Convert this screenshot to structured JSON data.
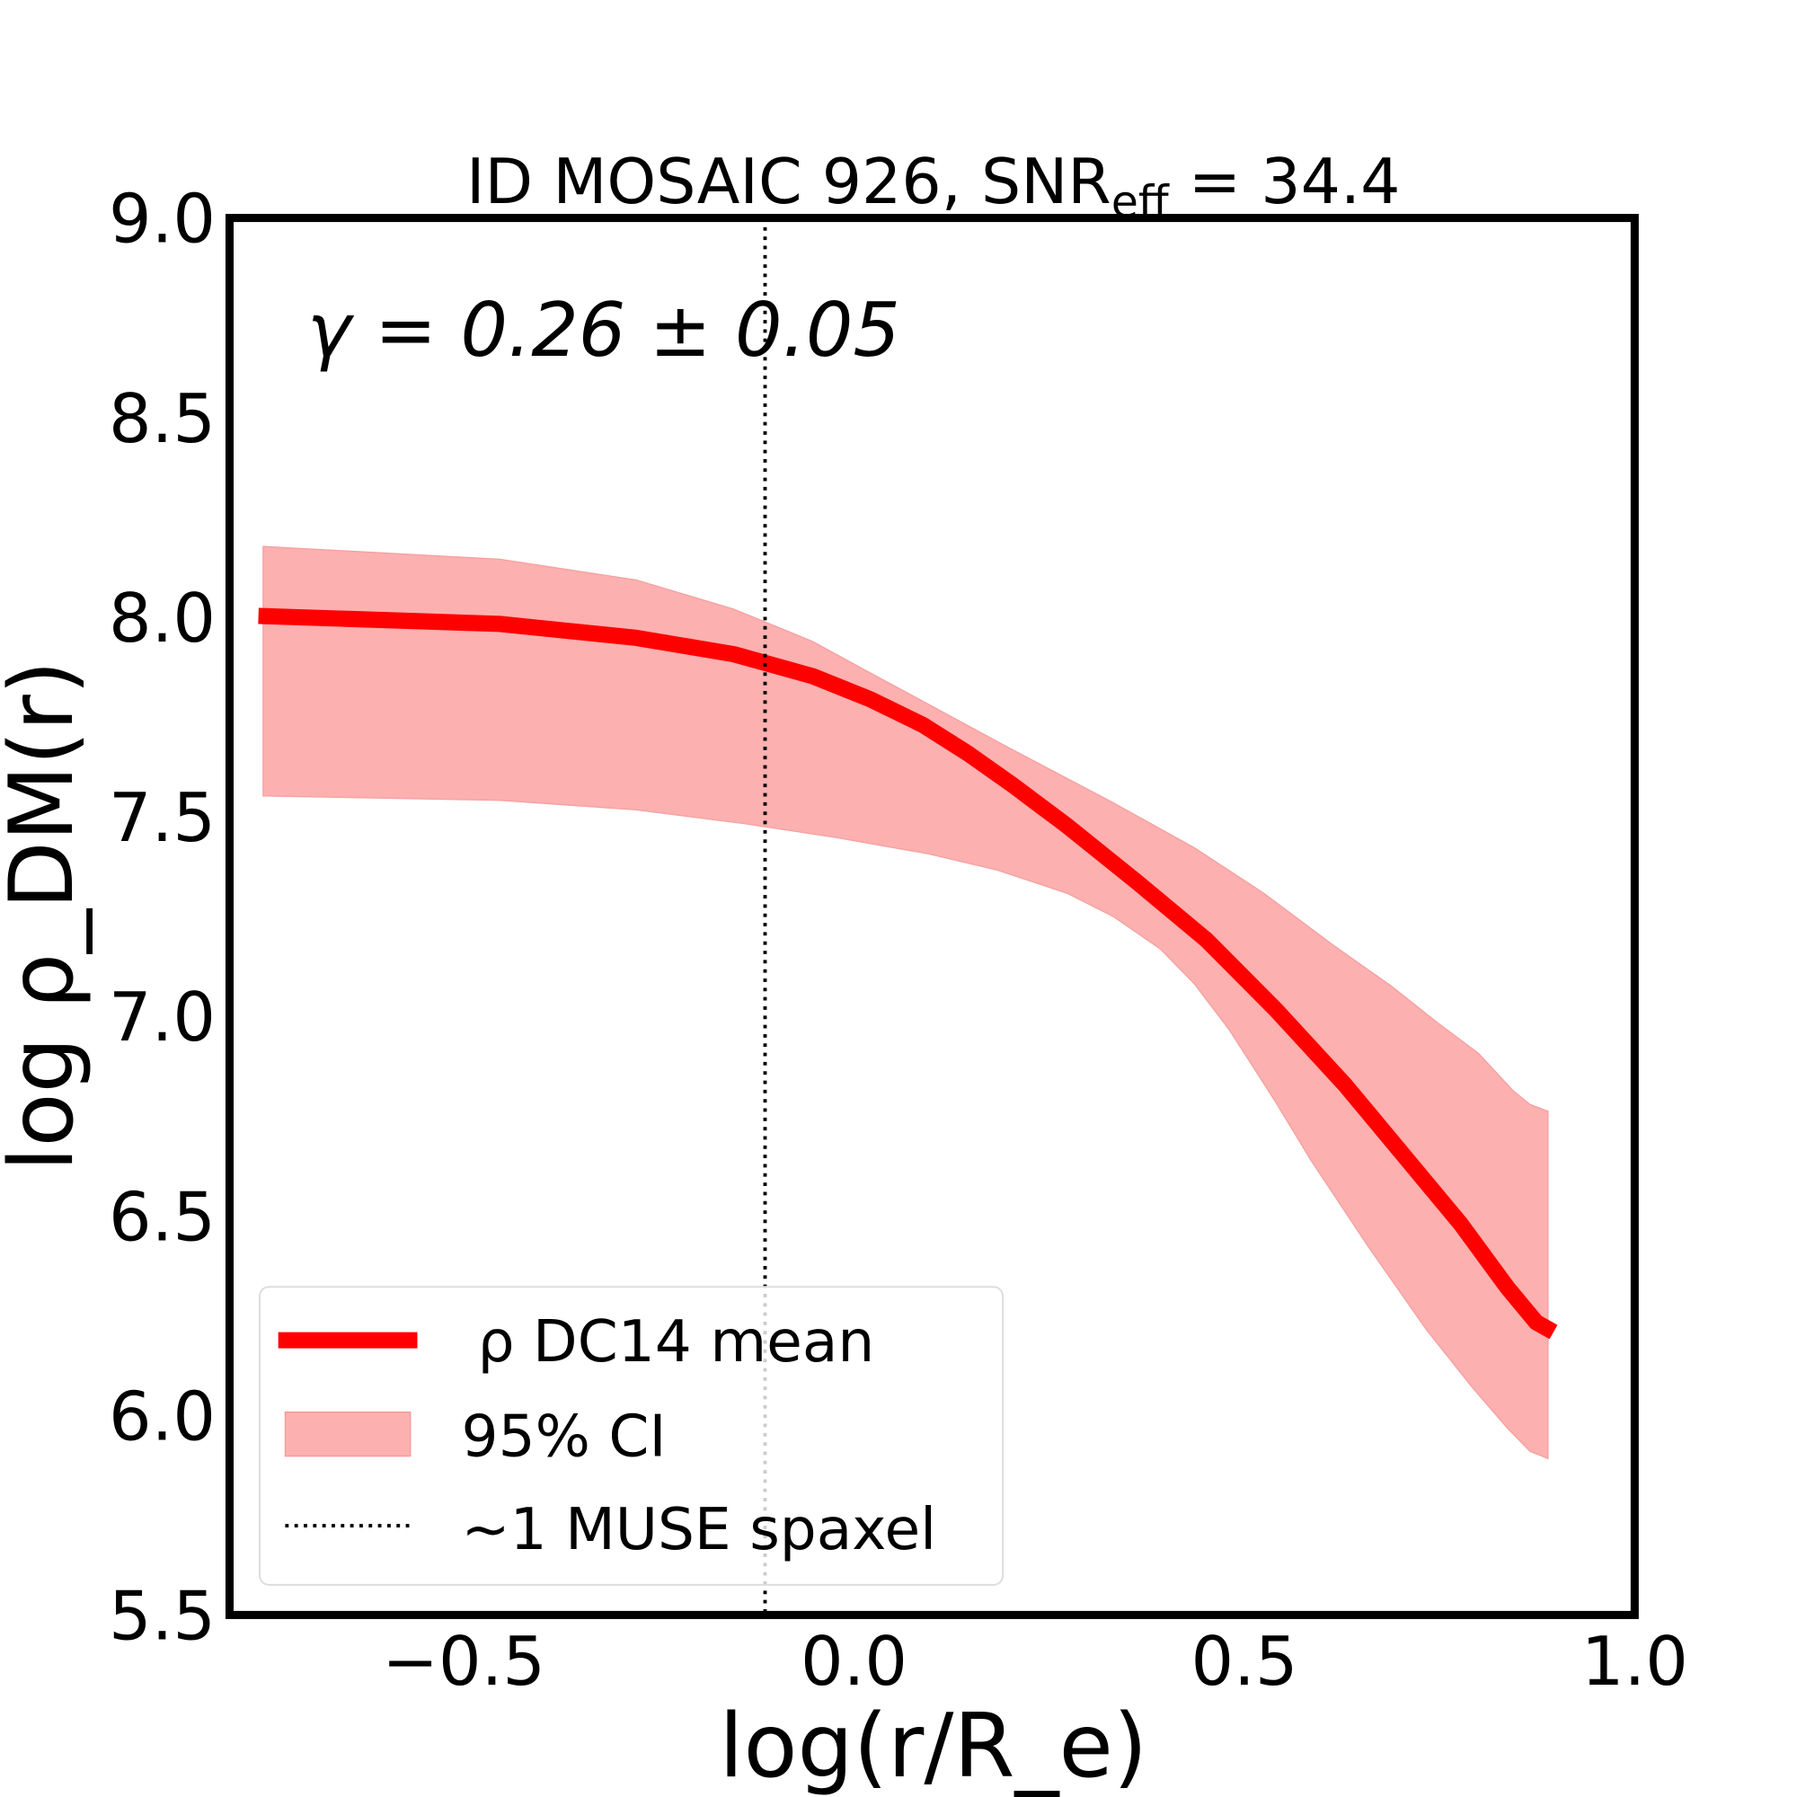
{
  "chart_data": {
    "type": "line",
    "title": "ID MOSAIC 926, SNR",
    "title_sub": "eff",
    "title_tail": " = 34.4",
    "xlabel": "log(r/R_e)",
    "ylabel": "log ρ_DM(r)",
    "xlim": [
      -0.8,
      1.0
    ],
    "ylim": [
      5.5,
      9.0
    ],
    "xticks": [
      "−0.5",
      "0.0",
      "0.5",
      "1.0"
    ],
    "xtick_values": [
      -0.5,
      0.0,
      0.5,
      1.0
    ],
    "yticks": [
      "5.5",
      "6.0",
      "6.5",
      "7.0",
      "7.5",
      "8.0",
      "8.5",
      "9.0"
    ],
    "ytick_values": [
      5.5,
      6.0,
      6.5,
      7.0,
      7.5,
      8.0,
      8.5,
      9.0
    ],
    "grid": false,
    "annotation": "γ = 0.26 ± 0.05",
    "legend_position": "lower-left",
    "series": [
      {
        "name": "ρ DC14 mean",
        "color": "#ff0000",
        "x": [
          -0.763,
          -0.454,
          -0.279,
          -0.154,
          -0.053,
          0.021,
          0.088,
          0.147,
          0.202,
          0.273,
          0.362,
          0.451,
          0.54,
          0.629,
          0.703,
          0.777,
          0.837,
          0.874,
          0.896
        ],
        "y": [
          8.003,
          7.983,
          7.948,
          7.907,
          7.852,
          7.794,
          7.73,
          7.657,
          7.581,
          7.477,
          7.337,
          7.192,
          7.017,
          6.828,
          6.654,
          6.48,
          6.32,
          6.233,
          6.209
        ]
      }
    ],
    "band": {
      "name": "95% CI",
      "color": "#fcb0b0",
      "upper": {
        "x": [
          -0.757,
          -0.454,
          -0.279,
          -0.154,
          -0.053,
          0.021,
          0.095,
          0.199,
          0.332,
          0.436,
          0.525,
          0.614,
          0.688,
          0.748,
          0.8,
          0.844,
          0.866,
          0.889
        ],
        "y": [
          8.177,
          8.145,
          8.093,
          8.02,
          7.939,
          7.86,
          7.782,
          7.672,
          7.535,
          7.422,
          7.308,
          7.178,
          7.076,
          6.983,
          6.907,
          6.814,
          6.779,
          6.762
        ]
      },
      "lower": {
        "x": [
          -0.757,
          -0.454,
          -0.279,
          -0.142,
          -0.024,
          0.095,
          0.184,
          0.273,
          0.332,
          0.392,
          0.436,
          0.481,
          0.54,
          0.585,
          0.659,
          0.733,
          0.792,
          0.837,
          0.866,
          0.889
        ],
        "y": [
          7.552,
          7.541,
          7.517,
          7.483,
          7.448,
          7.407,
          7.366,
          7.308,
          7.25,
          7.169,
          7.081,
          6.965,
          6.785,
          6.64,
          6.422,
          6.215,
          6.07,
          5.968,
          5.91,
          5.892
        ]
      }
    },
    "vline": {
      "name": "~1 MUSE spaxel",
      "x": -0.114,
      "style": "dotted",
      "color": "#000000"
    }
  }
}
